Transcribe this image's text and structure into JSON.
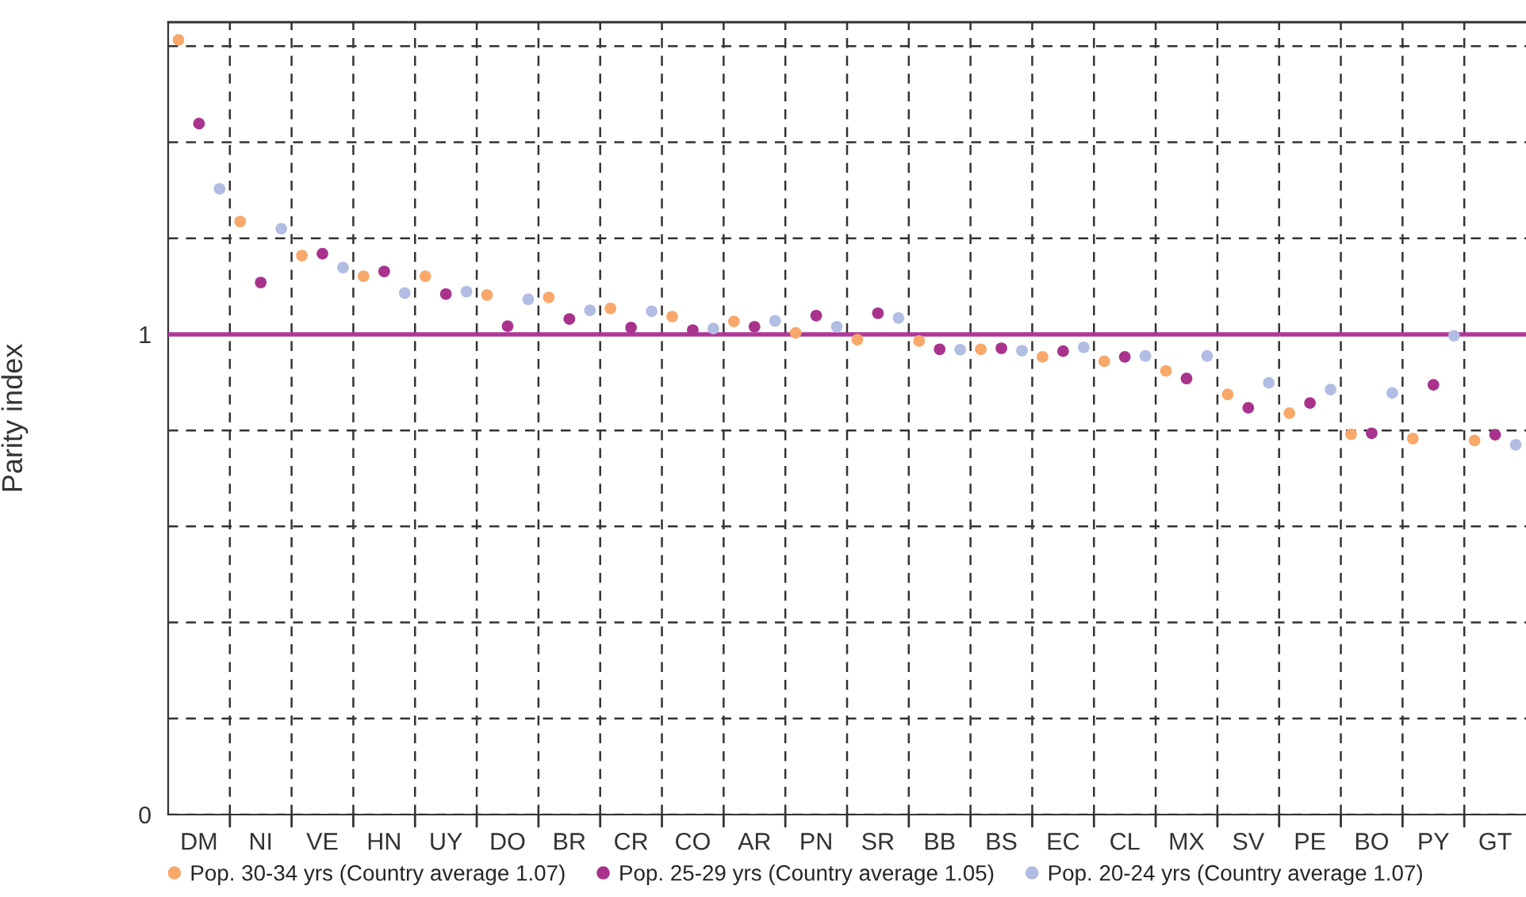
{
  "chart_data": {
    "type": "scatter",
    "ylabel": "Parity index",
    "categories": [
      "DM",
      "NI",
      "VE",
      "HN",
      "UY",
      "DO",
      "BR",
      "CR",
      "CO",
      "AR",
      "PN",
      "SR",
      "BB",
      "BS",
      "EC",
      "CL",
      "MX",
      "SV",
      "PE",
      "BO",
      "PY",
      "GT"
    ],
    "series": [
      {
        "name": "Pop. 30-34 yrs (Country average 1.07)",
        "color": "#f9a86b",
        "values": [
          1.613,
          1.235,
          1.164,
          1.121,
          1.121,
          1.082,
          1.077,
          1.054,
          1.037,
          1.027,
          1.003,
          0.989,
          0.986,
          0.969,
          0.953,
          0.944,
          0.924,
          0.875,
          0.836,
          0.792,
          0.783,
          0.779
        ]
      },
      {
        "name": "Pop. 25-29 yrs (Country average 1.05)",
        "color": "#a9338c",
        "values": [
          1.439,
          1.108,
          1.168,
          1.131,
          1.084,
          1.017,
          1.032,
          1.014,
          1.009,
          1.016,
          1.039,
          1.044,
          0.969,
          0.971,
          0.965,
          0.953,
          0.908,
          0.847,
          0.857,
          0.794,
          0.895,
          0.791
        ]
      },
      {
        "name": "Pop. 20-24 yrs (Country average 1.07)",
        "color": "#b2bde3",
        "values": [
          1.303,
          1.22,
          1.139,
          1.086,
          1.089,
          1.073,
          1.05,
          1.048,
          1.012,
          1.028,
          1.016,
          1.034,
          0.968,
          0.966,
          0.973,
          0.955,
          0.955,
          0.899,
          0.885,
          0.878,
          0.997,
          0.77
        ]
      }
    ],
    "ylim": [
      0,
      1.65
    ],
    "yticks": [
      0,
      {
        "value": 0.2,
        "label": null
      },
      {
        "value": 0.4,
        "label": null
      },
      {
        "value": 0.6,
        "label": null
      },
      {
        "value": 0.8,
        "label": null
      },
      1,
      {
        "value": 1.2,
        "label": null
      },
      {
        "value": 1.4,
        "label": null
      },
      {
        "value": 1.6,
        "label": null
      }
    ],
    "ref_lines": [
      {
        "axis": "y",
        "value": 1,
        "color": "#b0379a"
      }
    ],
    "grid": true,
    "legend": "bottom",
    "marker": "circle"
  }
}
